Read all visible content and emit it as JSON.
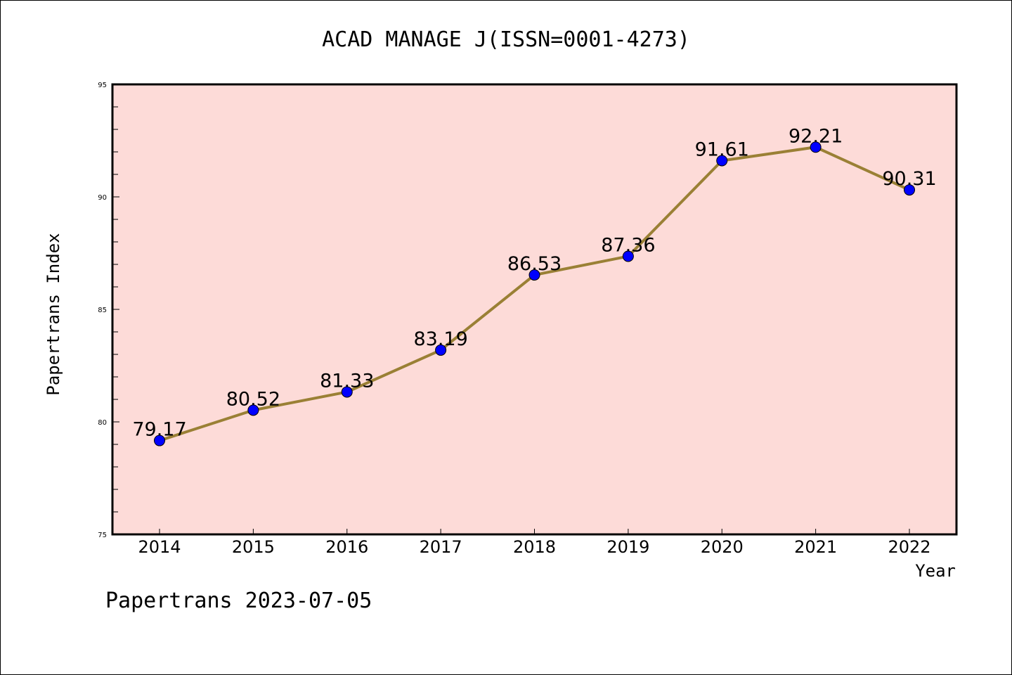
{
  "footer": "Papertrans 2023-07-05",
  "chart_data": {
    "type": "line",
    "title": "ACAD MANAGE J(ISSN=0001-4273)",
    "xlabel": "Year",
    "ylabel": "Papertrans Index",
    "categories": [
      "2014",
      "2015",
      "2016",
      "2017",
      "2018",
      "2019",
      "2020",
      "2021",
      "2022"
    ],
    "series": [
      {
        "values": [
          79.17,
          80.52,
          81.33,
          83.19,
          86.53,
          87.36,
          91.61,
          92.21,
          90.31
        ],
        "labels": [
          "79.17",
          "80.52",
          "81.33",
          "83.19",
          "86.53",
          "87.36",
          "91.61",
          "92.21",
          "90.31"
        ],
        "line_color": "#9a8035",
        "marker_color": "#0000ff"
      }
    ],
    "ylim": [
      75,
      95
    ],
    "yticks": [
      "75",
      "80",
      "85",
      "90",
      "95"
    ],
    "background_color": "#fddbd8",
    "grid": false,
    "legend": "none"
  }
}
